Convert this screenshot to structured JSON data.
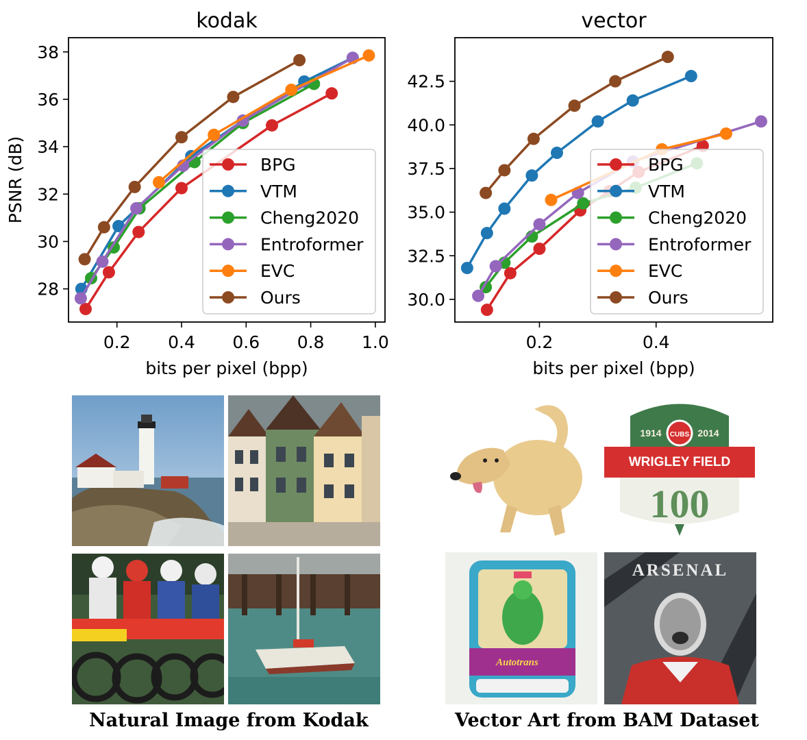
{
  "chart_data": [
    {
      "type": "line",
      "title": "kodak",
      "xlabel": "bits per pixel (bpp)",
      "ylabel": "PSNR (dB)",
      "xlim": [
        0.05,
        1.03
      ],
      "ylim": [
        26.6,
        38.6
      ],
      "xticks": [
        "0.2",
        "0.4",
        "0.6",
        "0.8",
        "1.0"
      ],
      "yticks": [
        "28",
        "30",
        "32",
        "34",
        "36",
        "38"
      ],
      "grid": false,
      "legend": "lower-right",
      "series": [
        {
          "name": "BPG",
          "color": "#d62728",
          "x": [
            0.103,
            0.175,
            0.267,
            0.4,
            0.68,
            0.865
          ],
          "y": [
            27.15,
            28.7,
            30.4,
            32.25,
            34.9,
            36.25
          ]
        },
        {
          "name": "VTM",
          "color": "#1f77b4",
          "x": [
            0.09,
            0.205,
            0.43,
            0.59,
            0.78,
            0.93
          ],
          "y": [
            28.0,
            30.65,
            33.6,
            35.1,
            36.75,
            37.75
          ]
        },
        {
          "name": "Cheng2020",
          "color": "#2ca02c",
          "x": [
            0.12,
            0.19,
            0.27,
            0.44,
            0.59,
            0.81
          ],
          "y": [
            28.45,
            29.75,
            31.4,
            33.35,
            35.0,
            36.65
          ]
        },
        {
          "name": "Entroformer",
          "color": "#9467bd",
          "x": [
            0.088,
            0.155,
            0.26,
            0.405,
            0.59,
            0.93
          ],
          "y": [
            27.6,
            29.15,
            31.4,
            33.2,
            35.1,
            37.75
          ]
        },
        {
          "name": "EVC",
          "color": "#ff7f0e",
          "x": [
            0.33,
            0.5,
            0.74,
            0.98
          ],
          "y": [
            32.5,
            34.5,
            36.4,
            37.85
          ]
        },
        {
          "name": "Ours",
          "color": "#8c4a22",
          "x": [
            0.1,
            0.16,
            0.255,
            0.4,
            0.56,
            0.765
          ],
          "y": [
            29.25,
            30.6,
            32.3,
            34.4,
            36.1,
            37.65
          ]
        }
      ]
    },
    {
      "type": "line",
      "title": "vector",
      "xlabel": "bits per pixel (bpp)",
      "ylabel": "",
      "xlim": [
        0.055,
        0.6
      ],
      "ylim": [
        28.7,
        45.0
      ],
      "xticks": [
        "0.2",
        "0.4"
      ],
      "yticks": [
        "30.0",
        "32.5",
        "35.0",
        "37.5",
        "40.0",
        "42.5"
      ],
      "grid": false,
      "legend": "lower-right",
      "series": [
        {
          "name": "BPG",
          "color": "#d62728",
          "x": [
            0.11,
            0.15,
            0.2,
            0.27,
            0.32,
            0.37,
            0.48
          ],
          "y": [
            29.4,
            31.5,
            32.9,
            35.1,
            36.2,
            37.3,
            38.8
          ]
        },
        {
          "name": "VTM",
          "color": "#1f77b4",
          "x": [
            0.076,
            0.11,
            0.14,
            0.187,
            0.23,
            0.3,
            0.36,
            0.46
          ],
          "y": [
            31.8,
            33.8,
            35.2,
            37.1,
            38.4,
            40.2,
            41.4,
            42.8
          ]
        },
        {
          "name": "Cheng2020",
          "color": "#2ca02c",
          "x": [
            0.108,
            0.14,
            0.187,
            0.275,
            0.365,
            0.47
          ],
          "y": [
            30.7,
            32.1,
            33.6,
            35.5,
            36.4,
            37.8
          ]
        },
        {
          "name": "Entroformer",
          "color": "#9467bd",
          "x": [
            0.095,
            0.125,
            0.2,
            0.266,
            0.36,
            0.58
          ],
          "y": [
            30.2,
            31.9,
            34.3,
            36.1,
            37.9,
            40.2
          ]
        },
        {
          "name": "EVC",
          "color": "#ff7f0e",
          "x": [
            0.22,
            0.41,
            0.52
          ],
          "y": [
            35.7,
            38.6,
            39.5
          ]
        },
        {
          "name": "Ours",
          "color": "#8c4a22",
          "x": [
            0.108,
            0.14,
            0.19,
            0.26,
            0.33,
            0.42
          ],
          "y": [
            36.1,
            37.4,
            39.2,
            41.1,
            42.5,
            43.9
          ]
        }
      ]
    }
  ],
  "captions": {
    "left": "Natural Image from Kodak",
    "right": "Vector Art from BAM Dataset"
  },
  "thumbnails": {
    "badge_year_left": "1914",
    "badge_year_right": "2014",
    "badge_emblem": "CUBS",
    "badge_name": "WRIGLEY FIELD",
    "badge_number": "100",
    "bus_text": "Autotrans",
    "poster_title": "ARSENAL"
  }
}
